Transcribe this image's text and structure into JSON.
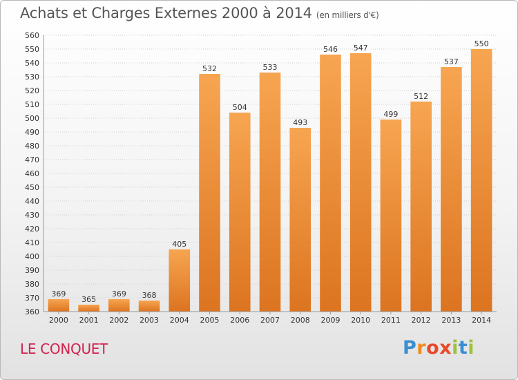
{
  "header": {
    "title": "Achats et Charges Externes 2000 à 2014",
    "subtitle": "(en milliers d'€)"
  },
  "footer": {
    "town": "LE CONQUET",
    "logo": "Proxiti"
  },
  "colors": {
    "bar_light": "#f7a551",
    "bar_dark": "#dc7420",
    "town": "#d2224f",
    "logo_letters": [
      "#3a8fd1",
      "#f08a1c",
      "#e8492a",
      "#e8492a",
      "#9dc13b",
      "#3a8fd1",
      "#9dc13b"
    ]
  },
  "chart_data": {
    "type": "bar",
    "title": "Achats et Charges Externes 2000 à 2014",
    "subtitle": "(en milliers d'€)",
    "categories": [
      "2000",
      "2001",
      "2002",
      "2003",
      "2004",
      "2005",
      "2006",
      "2007",
      "2008",
      "2009",
      "2010",
      "2011",
      "2012",
      "2013",
      "2014"
    ],
    "values": [
      369,
      365,
      369,
      368,
      405,
      532,
      504,
      533,
      493,
      546,
      547,
      499,
      512,
      537,
      550
    ],
    "ylim": [
      360,
      560
    ],
    "yticks": [
      360,
      370,
      380,
      390,
      400,
      410,
      420,
      430,
      440,
      450,
      460,
      470,
      480,
      490,
      500,
      510,
      520,
      530,
      540,
      550,
      560
    ],
    "grid": true,
    "xlabel": "",
    "ylabel": ""
  }
}
